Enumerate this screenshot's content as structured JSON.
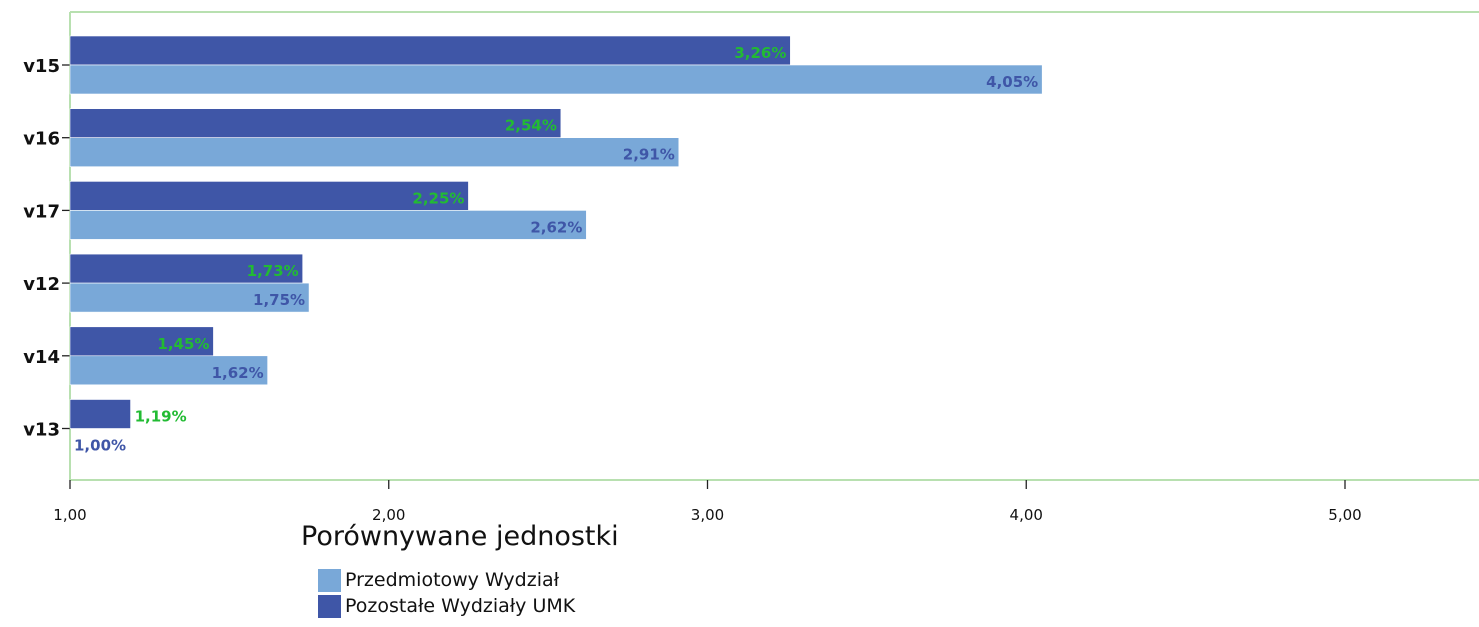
{
  "chart_data": {
    "type": "bar",
    "orientation": "horizontal",
    "categories": [
      "v15",
      "v16",
      "v17",
      "v12",
      "v14",
      "v13"
    ],
    "series": [
      {
        "name": "Pozostałe Wydziały UMK",
        "values": [
          3.26,
          2.54,
          2.25,
          1.73,
          1.45,
          1.19
        ],
        "labels": [
          "3,26%",
          "2,54%",
          "2,25%",
          "1,73%",
          "1,45%",
          "1,19%"
        ],
        "color": "#3f56a7",
        "label_color": "#22bb33"
      },
      {
        "name": "Przedmiotowy Wydział",
        "values": [
          4.05,
          2.91,
          2.62,
          1.75,
          1.62,
          1.0
        ],
        "labels": [
          "4,05%",
          "2,91%",
          "2,62%",
          "1,75%",
          "1,62%",
          "1,00%"
        ],
        "color": "#79a8d8",
        "label_color": "#3f56a7"
      }
    ],
    "xlim": [
      1.0,
      5.4
    ],
    "xticks": [
      1.0,
      2.0,
      3.0,
      4.0,
      5.0
    ],
    "xtick_labels": [
      "1,00",
      "2,00",
      "3,00",
      "4,00",
      "5,00"
    ],
    "xlabel": "",
    "ylabel": "",
    "title": "",
    "grid": false,
    "legend_title": "Porównywane jednostki",
    "legend_position": "bottom",
    "legend": [
      {
        "label": "Przedmiotowy Wydział",
        "color": "#79a8d8"
      },
      {
        "label": "Pozostałe Wydziały UMK",
        "color": "#3f56a7"
      }
    ],
    "frame_color": "#b8e0b0"
  }
}
